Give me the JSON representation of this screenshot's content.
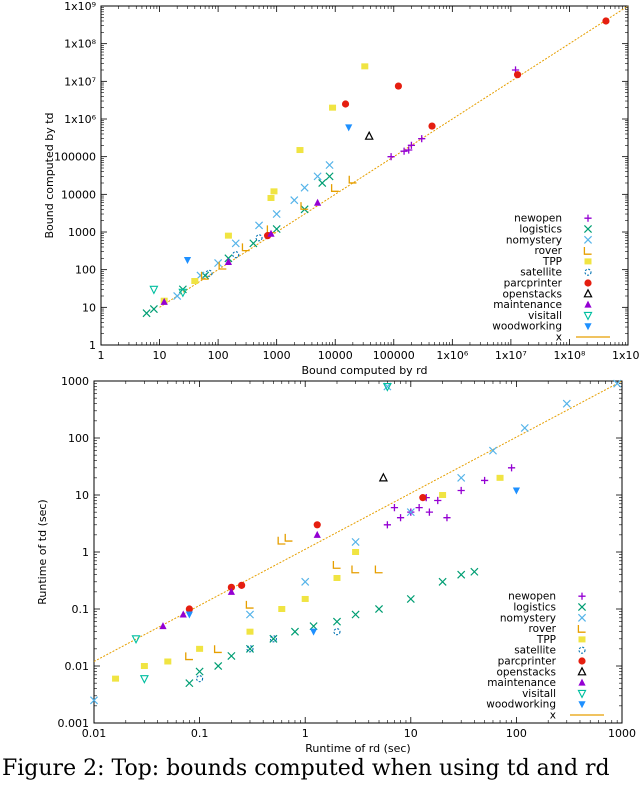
{
  "caption": "Figure 2: Top: bounds computed when using td and rd",
  "chart_data": [
    {
      "type": "scatter",
      "xlabel": "Bound computed by rd",
      "ylabel": "Bound computed by td",
      "xscale": "log",
      "yscale": "log",
      "xlim": [
        1,
        1000000000
      ],
      "ylim": [
        1,
        1000000000
      ],
      "xticks": [
        1,
        10,
        100,
        1000,
        10000,
        100000,
        1000000,
        10000000,
        100000000,
        1000000000
      ],
      "yticks": [
        1,
        10,
        100,
        1000,
        10000,
        100000,
        1000000,
        10000000,
        100000000,
        1000000000
      ],
      "xtick_labels": [
        "1",
        "10",
        "100",
        "1000",
        "10000",
        "100000",
        "1x10⁶",
        "1x10⁷",
        "1x10⁸",
        "1x10⁹"
      ],
      "ytick_labels": [
        "1",
        "10",
        "100",
        "1000",
        "10000",
        "100000",
        "1x10⁶",
        "1x10⁷",
        "1x10⁸",
        "1x10⁹"
      ],
      "legend_position": "bottom-right",
      "series": [
        {
          "name": "newopen",
          "marker": "plus",
          "color": "#9400d3",
          "points": [
            [
              90000,
              100000
            ],
            [
              150000,
              140000
            ],
            [
              200000,
              200000
            ],
            [
              300000,
              300000
            ],
            [
              12000000,
              20000000
            ],
            [
              180000,
              150000
            ]
          ]
        },
        {
          "name": "logistics",
          "marker": "x",
          "color": "#009e73",
          "points": [
            [
              6,
              7
            ],
            [
              8,
              9
            ],
            [
              25,
              30
            ],
            [
              60,
              70
            ],
            [
              150,
              200
            ],
            [
              400,
              500
            ],
            [
              1000,
              1200
            ],
            [
              3000,
              4000
            ],
            [
              8000,
              30000
            ],
            [
              6000,
              20000
            ]
          ]
        },
        {
          "name": "nomystery",
          "marker": "x",
          "color": "#56b4e9",
          "points": [
            [
              20,
              20
            ],
            [
              50,
              70
            ],
            [
              100,
              150
            ],
            [
              200,
              500
            ],
            [
              500,
              1500
            ],
            [
              1000,
              3000
            ],
            [
              2000,
              7000
            ],
            [
              3000,
              15000
            ],
            [
              5000,
              30000
            ],
            [
              8000,
              60000
            ]
          ]
        },
        {
          "name": "rover",
          "marker": "rover",
          "color": "#e69f00",
          "points": [
            [
              60,
              70
            ],
            [
              120,
              130
            ],
            [
              300,
              400
            ],
            [
              800,
              1200
            ],
            [
              3000,
              5000
            ],
            [
              10000,
              15000
            ],
            [
              20000,
              25000
            ]
          ]
        },
        {
          "name": "TPP",
          "marker": "square",
          "color": "#f0e442",
          "points": [
            [
              12,
              15
            ],
            [
              40,
              50
            ],
            [
              150,
              800
            ],
            [
              800,
              8000
            ],
            [
              2500,
              150000
            ],
            [
              9000,
              2000000
            ],
            [
              32000,
              25000000
            ],
            [
              900,
              12000
            ]
          ]
        },
        {
          "name": "satellite",
          "marker": "circle",
          "color": "#0072b2",
          "points": [
            [
              70,
              80
            ],
            [
              200,
              250
            ],
            [
              500,
              700
            ]
          ]
        },
        {
          "name": "parcprinter",
          "marker": "dot",
          "color": "#e51e10",
          "points": [
            [
              700,
              800
            ],
            [
              15000,
              2500000
            ],
            [
              120000,
              7500000
            ],
            [
              450000,
              650000
            ],
            [
              13000000,
              15000000
            ],
            [
              420000000,
              400000000
            ]
          ]
        },
        {
          "name": "openstacks",
          "marker": "triangle-open",
          "color": "#000000",
          "points": [
            [
              38000,
              350000
            ]
          ]
        },
        {
          "name": "maintenance",
          "marker": "triangle",
          "color": "#9400d3",
          "points": [
            [
              12,
              14
            ],
            [
              150,
              160
            ],
            [
              800,
              900
            ],
            [
              5000,
              6000
            ]
          ]
        },
        {
          "name": "visitall",
          "marker": "triangle-down-open",
          "color": "#00bfa0",
          "points": [
            [
              8,
              30
            ],
            [
              25,
              25
            ]
          ]
        },
        {
          "name": "woodworking",
          "marker": "triangle-down",
          "color": "#1e90ff",
          "points": [
            [
              30,
              180
            ],
            [
              17000,
              600000
            ]
          ]
        }
      ],
      "reference_line": {
        "name": "x",
        "color": "#e69f00",
        "from": [
          10,
          10
        ],
        "to": [
          1000000000,
          1000000000
        ]
      }
    },
    {
      "type": "scatter",
      "xlabel": "Runtime of rd (sec)",
      "ylabel": "Runtime of td (sec)",
      "xscale": "log",
      "yscale": "log",
      "xlim": [
        0.01,
        1000
      ],
      "ylim": [
        0.001,
        1000
      ],
      "xticks": [
        0.01,
        0.1,
        1,
        10,
        100,
        1000
      ],
      "yticks": [
        0.001,
        0.01,
        0.1,
        1,
        10,
        100,
        1000
      ],
      "xtick_labels": [
        "0.01",
        "0.1",
        "1",
        "10",
        "100",
        "1000"
      ],
      "ytick_labels": [
        "0.001",
        "0.01",
        "0.1",
        "1",
        "10",
        "100",
        "1000"
      ],
      "legend_position": "bottom-right",
      "series": [
        {
          "name": "newopen",
          "marker": "plus",
          "color": "#9400d3",
          "points": [
            [
              6,
              3
            ],
            [
              8,
              4
            ],
            [
              10,
              5
            ],
            [
              12,
              6
            ],
            [
              15,
              5
            ],
            [
              18,
              8
            ],
            [
              22,
              4
            ],
            [
              30,
              12
            ],
            [
              50,
              18
            ],
            [
              90,
              30
            ],
            [
              7,
              6
            ],
            [
              14,
              9
            ]
          ]
        },
        {
          "name": "logistics",
          "marker": "x",
          "color": "#009e73",
          "points": [
            [
              0.08,
              0.005
            ],
            [
              0.1,
              0.008
            ],
            [
              0.15,
              0.01
            ],
            [
              0.2,
              0.015
            ],
            [
              0.3,
              0.02
            ],
            [
              0.5,
              0.03
            ],
            [
              0.8,
              0.04
            ],
            [
              1.2,
              0.05
            ],
            [
              2,
              0.06
            ],
            [
              3,
              0.08
            ],
            [
              5,
              0.1
            ],
            [
              10,
              0.15
            ],
            [
              20,
              0.3
            ],
            [
              30,
              0.4
            ],
            [
              40,
              0.45
            ]
          ]
        },
        {
          "name": "nomystery",
          "marker": "x",
          "color": "#56b4e9",
          "points": [
            [
              0.01,
              0.0025
            ],
            [
              0.3,
              0.08
            ],
            [
              1,
              0.3
            ],
            [
              3,
              1.5
            ],
            [
              10,
              5
            ],
            [
              30,
              20
            ],
            [
              60,
              60
            ],
            [
              120,
              150
            ],
            [
              300,
              400
            ],
            [
              900,
              900
            ],
            [
              6,
              800
            ]
          ]
        },
        {
          "name": "rover",
          "marker": "rover",
          "color": "#e69f00",
          "points": [
            [
              0.08,
              0.015
            ],
            [
              0.15,
              0.02
            ],
            [
              0.3,
              0.12
            ],
            [
              0.6,
              1.6
            ],
            [
              0.7,
              1.8
            ],
            [
              2,
              0.6
            ],
            [
              3,
              0.5
            ],
            [
              5,
              0.5
            ]
          ]
        },
        {
          "name": "TPP",
          "marker": "square",
          "color": "#f0e442",
          "points": [
            [
              0.016,
              0.006
            ],
            [
              0.03,
              0.01
            ],
            [
              0.05,
              0.012
            ],
            [
              0.1,
              0.02
            ],
            [
              0.3,
              0.04
            ],
            [
              0.6,
              0.1
            ],
            [
              1,
              0.15
            ],
            [
              2,
              0.35
            ],
            [
              3,
              1
            ],
            [
              20,
              10
            ],
            [
              70,
              20
            ]
          ]
        },
        {
          "name": "satellite",
          "marker": "circle",
          "color": "#0072b2",
          "points": [
            [
              0.1,
              0.006
            ],
            [
              0.3,
              0.02
            ],
            [
              0.5,
              0.03
            ],
            [
              2,
              0.04
            ]
          ]
        },
        {
          "name": "parcprinter",
          "marker": "dot",
          "color": "#e51e10",
          "points": [
            [
              0.08,
              0.1
            ],
            [
              0.2,
              0.24
            ],
            [
              0.25,
              0.26
            ],
            [
              1.3,
              3
            ],
            [
              13,
              9
            ]
          ]
        },
        {
          "name": "openstacks",
          "marker": "triangle-open",
          "color": "#000000",
          "points": [
            [
              5.5,
              20
            ]
          ]
        },
        {
          "name": "maintenance",
          "marker": "triangle",
          "color": "#9400d3",
          "points": [
            [
              0.045,
              0.05
            ],
            [
              0.07,
              0.08
            ],
            [
              0.2,
              0.2
            ],
            [
              1.3,
              2
            ]
          ]
        },
        {
          "name": "visitall",
          "marker": "triangle-down-open",
          "color": "#00bfa0",
          "points": [
            [
              0.025,
              0.03
            ],
            [
              0.03,
              0.006
            ],
            [
              6,
              800
            ]
          ]
        },
        {
          "name": "woodworking",
          "marker": "triangle-down",
          "color": "#1e90ff",
          "points": [
            [
              0.08,
              0.08
            ],
            [
              1.2,
              0.04
            ],
            [
              100,
              12
            ]
          ]
        }
      ],
      "reference_line": {
        "name": "x",
        "color": "#e69f00",
        "from": [
          0.01,
          0.012
        ],
        "to": [
          1000,
          1000
        ]
      }
    }
  ]
}
